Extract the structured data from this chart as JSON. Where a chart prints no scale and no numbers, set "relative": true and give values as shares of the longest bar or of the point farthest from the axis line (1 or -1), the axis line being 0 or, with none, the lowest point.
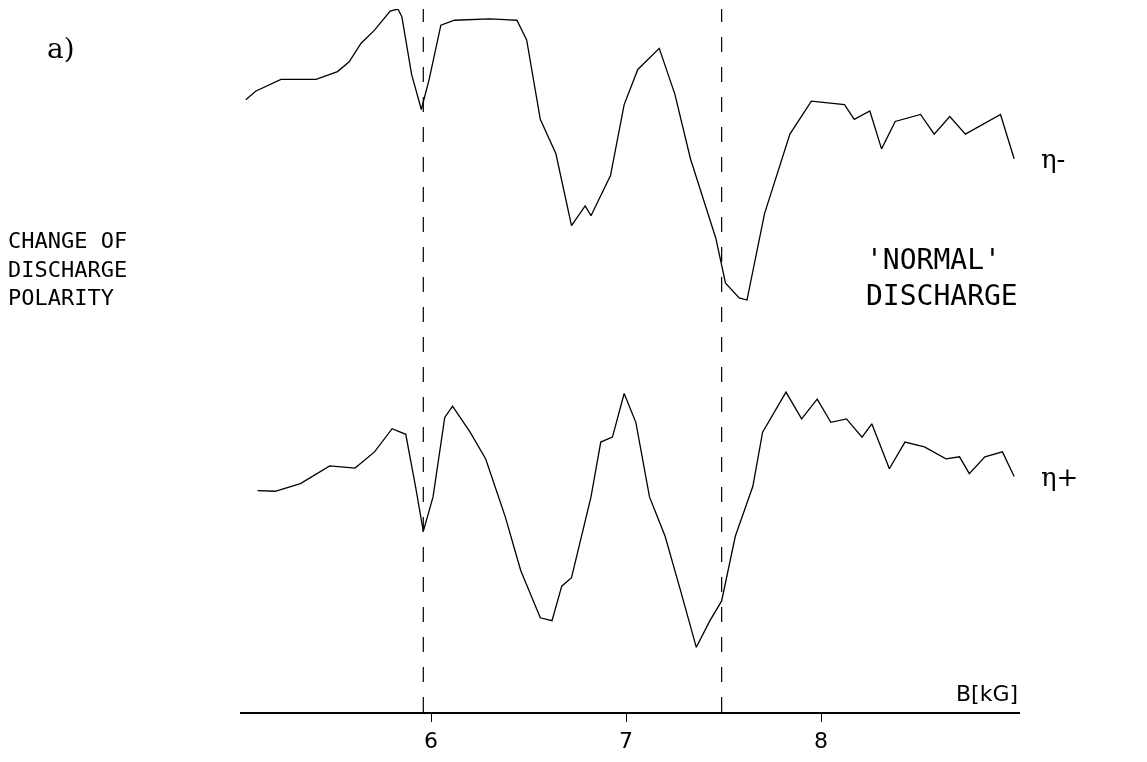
{
  "chart_data": {
    "type": "line",
    "relative": true,
    "title": "a)",
    "xlabel": "B[kG]",
    "x": [
      5.05,
      5.1,
      5.23,
      5.41,
      5.52,
      5.58,
      5.64,
      5.71,
      5.79,
      5.83,
      5.85,
      5.9,
      5.95,
      5.99,
      6.05,
      6.12,
      6.3,
      6.44,
      6.49,
      6.56,
      6.64,
      6.72,
      6.79,
      6.82,
      6.92,
      6.99,
      7.06,
      7.17,
      7.25,
      7.33,
      7.46,
      7.51,
      7.58,
      7.62,
      7.71,
      7.84,
      7.95,
      8.12,
      8.17,
      8.25,
      8.31,
      8.38,
      8.51,
      8.58,
      8.66,
      8.74,
      8.92,
      8.99
    ],
    "xlim": [
      5.02,
      9.02
    ],
    "xticks": [
      6,
      7,
      8
    ],
    "legend": false,
    "marker": "none",
    "line_style": "solid",
    "series": [
      {
        "name": "η-",
        "color": "#000000",
        "values": [
          0.871,
          0.883,
          0.9,
          0.9,
          0.911,
          0.925,
          0.951,
          0.97,
          0.997,
          1.0,
          0.989,
          0.907,
          0.857,
          0.9,
          0.977,
          0.984,
          0.986,
          0.984,
          0.956,
          0.843,
          0.794,
          0.692,
          0.72,
          0.706,
          0.763,
          0.864,
          0.914,
          0.944,
          0.879,
          0.787,
          0.674,
          0.61,
          0.589,
          0.586,
          0.709,
          0.822,
          0.869,
          0.864,
          0.843,
          0.855,
          0.801,
          0.84,
          0.85,
          0.822,
          0.847,
          0.822,
          0.85,
          0.787
        ]
      },
      {
        "name": "η+",
        "color": "#000000",
        "x": [
          5.11,
          5.2,
          5.33,
          5.48,
          5.61,
          5.71,
          5.8,
          5.87,
          5.92,
          5.96,
          6.01,
          6.07,
          6.11,
          6.2,
          6.28,
          6.38,
          6.46,
          6.56,
          6.62,
          6.67,
          6.72,
          6.82,
          6.87,
          6.93,
          6.99,
          7.05,
          7.12,
          7.2,
          7.28,
          7.36,
          7.43,
          7.49,
          7.56,
          7.65,
          7.7,
          7.82,
          7.9,
          7.98,
          8.05,
          8.13,
          8.21,
          8.26,
          8.35,
          8.43,
          8.53,
          8.64,
          8.71,
          8.76,
          8.84,
          8.93,
          8.99
        ],
        "values": [
          0.315,
          0.314,
          0.325,
          0.35,
          0.347,
          0.37,
          0.403,
          0.395,
          0.321,
          0.257,
          0.306,
          0.419,
          0.435,
          0.398,
          0.36,
          0.278,
          0.201,
          0.134,
          0.13,
          0.179,
          0.191,
          0.306,
          0.384,
          0.391,
          0.453,
          0.412,
          0.306,
          0.25,
          0.172,
          0.092,
          0.13,
          0.158,
          0.25,
          0.321,
          0.398,
          0.455,
          0.417,
          0.445,
          0.412,
          0.417,
          0.391,
          0.41,
          0.346,
          0.384,
          0.377,
          0.36,
          0.363,
          0.339,
          0.363,
          0.37,
          0.335
        ]
      }
    ],
    "ref_lines": [
      {
        "axis": "x",
        "value": 5.96,
        "color": "#000000",
        "line_style": "dashed"
      },
      {
        "axis": "x",
        "value": 7.49,
        "color": "#000000",
        "line_style": "dashed"
      }
    ],
    "annotations": [
      "CHANGE OF\nDISCHARGE\nPOLARITY",
      "'NORMAL'\nDISCHARGE"
    ]
  }
}
